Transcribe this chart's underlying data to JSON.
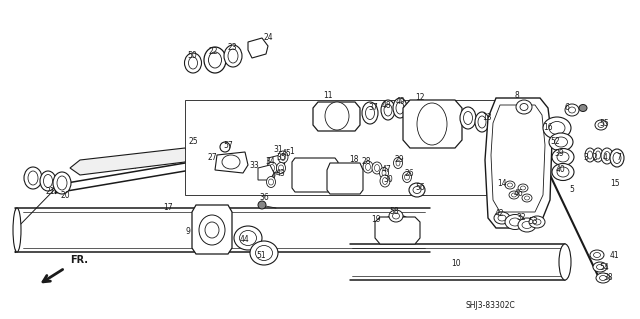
{
  "bg_color": "#ffffff",
  "fig_width": 6.4,
  "fig_height": 3.19,
  "diagram_code": "SHJ3-83302C",
  "part_color": "#1a1a1a",
  "label_fontsize": 5.5
}
